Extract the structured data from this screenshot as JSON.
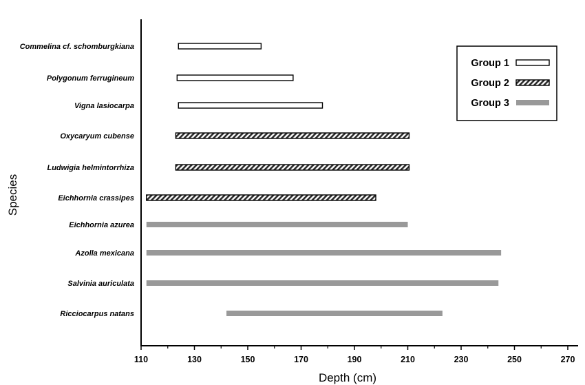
{
  "chart_data": {
    "type": "bar",
    "orientation": "horizontal-range",
    "title": "",
    "xlabel": "Depth (cm)",
    "ylabel": "Species",
    "xlim": [
      110,
      270
    ],
    "x_ticks": [
      110,
      130,
      150,
      170,
      190,
      210,
      230,
      250,
      270
    ],
    "grid": false,
    "legend_position": "top-right",
    "legend": [
      {
        "name": "Group 1",
        "style": "open",
        "color": "#ffffff"
      },
      {
        "name": "Group 2",
        "style": "hatched",
        "color": "#2b2b2b"
      },
      {
        "name": "Group 3",
        "style": "solid",
        "color": "#999999"
      }
    ],
    "categories": [
      "Commelina cf. schomburgkiana",
      "Polygonum ferrugineum",
      "Vigna lasiocarpa",
      "Oxycaryum cubense",
      "Ludwigia helmintorrhiza",
      "Eichhornia crassipes",
      "Eichhornia azurea",
      "Azolla mexicana",
      "Salvinia auriculata",
      "Ricciocarpus natans"
    ],
    "bars": [
      {
        "species": "Commelina cf. schomburgkiana",
        "group": "Group 1",
        "start": 124,
        "end": 155
      },
      {
        "species": "Polygonum ferrugineum",
        "group": "Group 1",
        "start": 123.5,
        "end": 167
      },
      {
        "species": "Vigna lasiocarpa",
        "group": "Group 1",
        "start": 124,
        "end": 178
      },
      {
        "species": "Oxycaryum cubense",
        "group": "Group 2",
        "start": 123,
        "end": 210.5
      },
      {
        "species": "Ludwigia helmintorrhiza",
        "group": "Group 2",
        "start": 123,
        "end": 210.5
      },
      {
        "species": "Eichhornia crassipes",
        "group": "Group 2",
        "start": 112,
        "end": 198
      },
      {
        "species": "Eichhornia azurea",
        "group": "Group 3",
        "start": 112,
        "end": 210
      },
      {
        "species": "Azolla mexicana",
        "group": "Group 3",
        "start": 112,
        "end": 245
      },
      {
        "species": "Salvinia auriculata",
        "group": "Group 3",
        "start": 112,
        "end": 244
      },
      {
        "species": "Ricciocarpus natans",
        "group": "Group 3",
        "start": 142,
        "end": 223
      }
    ]
  }
}
